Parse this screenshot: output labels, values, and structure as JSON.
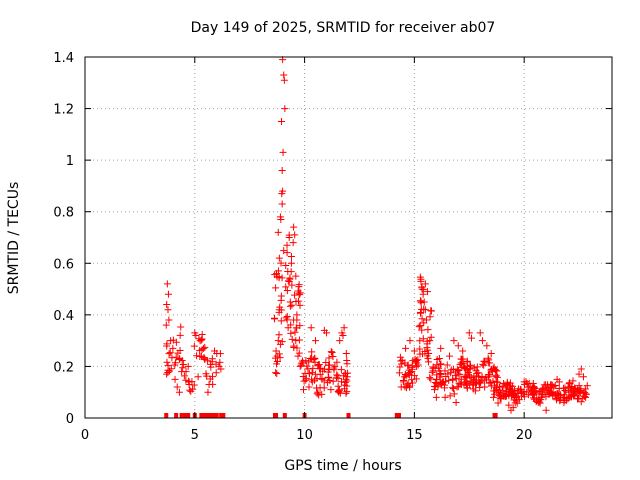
{
  "chart_data": {
    "type": "scatter",
    "title": "Day 149 of 2025, SRMTID for receiver ab07",
    "xlabel": "GPS time / hours",
    "ylabel": "SRMTID / TECUs",
    "xlim": [
      0,
      24
    ],
    "ylim": [
      0,
      1.4
    ],
    "grid": true,
    "marker": "+",
    "color": "#ff0000",
    "x_ticks": [
      {
        "value": 0,
        "label": "0"
      },
      {
        "value": 5,
        "label": "5"
      },
      {
        "value": 10,
        "label": "10"
      },
      {
        "value": 15,
        "label": "15"
      },
      {
        "value": 20,
        "label": "20"
      }
    ],
    "y_ticks": [
      {
        "value": 0,
        "label": "0"
      },
      {
        "value": 0.2,
        "label": "0.2"
      },
      {
        "value": 0.4,
        "label": "0.4"
      },
      {
        "value": 0.6,
        "label": "0.6"
      },
      {
        "value": 0.8,
        "label": "0.8"
      },
      {
        "value": 1.0,
        "label": "1"
      },
      {
        "value": 1.2,
        "label": "1.2"
      },
      {
        "value": 1.4,
        "label": "1.4"
      }
    ],
    "segments": [
      {
        "x0": 3.7,
        "x1": 4.5,
        "base": 0.25,
        "amp": 0.1,
        "n": 26,
        "spikes": [
          [
            3.75,
            0.52
          ],
          [
            3.8,
            0.48
          ],
          [
            3.72,
            0.44
          ],
          [
            3.78,
            0.42
          ],
          [
            3.82,
            0.38
          ],
          [
            3.7,
            0.36
          ],
          [
            3.9,
            0.3
          ],
          [
            4.0,
            0.27
          ],
          [
            4.1,
            0.15
          ],
          [
            4.2,
            0.12
          ],
          [
            4.3,
            0.1
          ],
          [
            4.4,
            0.18
          ]
        ]
      },
      {
        "x0": 4.5,
        "x1": 5.0,
        "base": 0.14,
        "amp": 0.04,
        "n": 10,
        "spikes": [
          [
            4.6,
            0.18
          ],
          [
            4.7,
            0.2
          ]
        ]
      },
      {
        "x0": 4.95,
        "x1": 5.5,
        "base": 0.26,
        "amp": 0.06,
        "n": 14,
        "spikes": [
          [
            5.0,
            0.33
          ],
          [
            5.05,
            0.32
          ],
          [
            5.3,
            0.24
          ],
          [
            5.4,
            0.27
          ],
          [
            5.15,
            0.16
          ]
        ]
      },
      {
        "x0": 5.5,
        "x1": 6.2,
        "base": 0.19,
        "amp": 0.06,
        "n": 14,
        "spikes": [
          [
            5.6,
            0.1
          ],
          [
            5.65,
            0.13
          ],
          [
            5.8,
            0.23
          ],
          [
            5.9,
            0.26
          ],
          [
            6.0,
            0.25
          ],
          [
            6.1,
            0.2
          ]
        ]
      },
      {
        "x0": 8.6,
        "x1": 9.9,
        "base": 0.45,
        "amp": 0.25,
        "n": 70,
        "spikes": [
          [
            9.0,
            1.39
          ],
          [
            9.05,
            1.33
          ],
          [
            9.08,
            1.31
          ],
          [
            9.1,
            1.2
          ],
          [
            8.95,
            1.15
          ],
          [
            9.02,
            1.03
          ],
          [
            8.98,
            0.96
          ],
          [
            9.0,
            0.88
          ],
          [
            8.96,
            0.87
          ],
          [
            8.98,
            0.83
          ],
          [
            8.9,
            0.78
          ],
          [
            8.92,
            0.77
          ],
          [
            8.8,
            0.72
          ],
          [
            8.85,
            0.62
          ],
          [
            8.75,
            0.24
          ],
          [
            8.7,
            0.26
          ],
          [
            8.72,
            0.21
          ],
          [
            8.8,
            0.3
          ],
          [
            8.85,
            0.42
          ],
          [
            9.5,
            0.74
          ],
          [
            9.55,
            0.71
          ],
          [
            9.48,
            0.68
          ],
          [
            9.3,
            0.7
          ],
          [
            9.2,
            0.67
          ],
          [
            9.4,
            0.6
          ],
          [
            9.6,
            0.55
          ],
          [
            9.35,
            0.45
          ],
          [
            9.5,
            0.38
          ],
          [
            9.6,
            0.3
          ],
          [
            9.7,
            0.24
          ],
          [
            9.8,
            0.2
          ],
          [
            9.65,
            0.4
          ],
          [
            9.25,
            0.35
          ]
        ]
      },
      {
        "x0": 9.9,
        "x1": 12.0,
        "base": 0.17,
        "amp": 0.08,
        "n": 90,
        "spikes": [
          [
            10.3,
            0.35
          ],
          [
            10.5,
            0.3
          ],
          [
            10.9,
            0.34
          ],
          [
            11.0,
            0.33
          ],
          [
            11.6,
            0.3
          ],
          [
            11.7,
            0.33
          ],
          [
            11.8,
            0.35
          ],
          [
            11.75,
            0.32
          ],
          [
            11.9,
            0.25
          ],
          [
            11.2,
            0.11
          ],
          [
            10.6,
            0.1
          ],
          [
            10.2,
            0.12
          ]
        ]
      },
      {
        "x0": 14.3,
        "x1": 15.3,
        "base": 0.18,
        "amp": 0.06,
        "n": 40,
        "spikes": [
          [
            14.6,
            0.27
          ],
          [
            14.8,
            0.3
          ],
          [
            15.0,
            0.26
          ],
          [
            15.1,
            0.2
          ],
          [
            14.4,
            0.12
          ],
          [
            14.5,
            0.14
          ]
        ]
      },
      {
        "x0": 15.2,
        "x1": 15.8,
        "base": 0.35,
        "amp": 0.18,
        "n": 36,
        "spikes": [
          [
            15.3,
            0.53
          ],
          [
            15.35,
            0.5
          ],
          [
            15.4,
            0.48
          ],
          [
            15.5,
            0.52
          ],
          [
            15.6,
            0.49
          ],
          [
            15.45,
            0.45
          ],
          [
            15.5,
            0.42
          ],
          [
            15.55,
            0.38
          ],
          [
            15.7,
            0.3
          ],
          [
            15.65,
            0.25
          ]
        ]
      },
      {
        "x0": 15.8,
        "x1": 17.5,
        "base": 0.16,
        "amp": 0.07,
        "n": 90,
        "spikes": [
          [
            16.2,
            0.27
          ],
          [
            16.6,
            0.24
          ],
          [
            16.8,
            0.3
          ],
          [
            17.0,
            0.28
          ],
          [
            17.2,
            0.26
          ],
          [
            16.0,
            0.08
          ],
          [
            16.4,
            0.08
          ],
          [
            16.9,
            0.06
          ]
        ]
      },
      {
        "x0": 17.5,
        "x1": 18.8,
        "base": 0.17,
        "amp": 0.07,
        "n": 70,
        "spikes": [
          [
            17.5,
            0.33
          ],
          [
            17.6,
            0.31
          ],
          [
            18.0,
            0.33
          ],
          [
            18.1,
            0.3
          ],
          [
            18.3,
            0.28
          ],
          [
            18.5,
            0.25
          ],
          [
            18.2,
            0.12
          ],
          [
            18.6,
            0.08
          ]
        ]
      },
      {
        "x0": 18.8,
        "x1": 20.5,
        "base": 0.1,
        "amp": 0.04,
        "n": 90,
        "spikes": [
          [
            19.3,
            0.05
          ],
          [
            19.4,
            0.03
          ],
          [
            19.5,
            0.04
          ],
          [
            20.0,
            0.14
          ],
          [
            20.3,
            0.12
          ]
        ]
      },
      {
        "x0": 20.5,
        "x1": 22.9,
        "base": 0.1,
        "amp": 0.04,
        "n": 110,
        "spikes": [
          [
            21.0,
            0.03
          ],
          [
            21.5,
            0.15
          ],
          [
            21.6,
            0.14
          ],
          [
            22.0,
            0.12
          ],
          [
            22.5,
            0.17
          ],
          [
            22.6,
            0.19
          ],
          [
            22.7,
            0.16
          ],
          [
            22.8,
            0.08
          ]
        ]
      }
    ],
    "zero_markers": [
      3.7,
      4.15,
      4.4,
      4.5,
      4.6,
      4.7,
      5.0,
      5.3,
      5.4,
      5.5,
      5.55,
      5.6,
      5.7,
      5.8,
      5.9,
      6.0,
      6.2,
      6.3,
      8.65,
      8.7,
      9.1,
      10.0,
      12.0,
      14.2,
      14.25,
      14.3,
      18.65,
      18.7
    ]
  }
}
